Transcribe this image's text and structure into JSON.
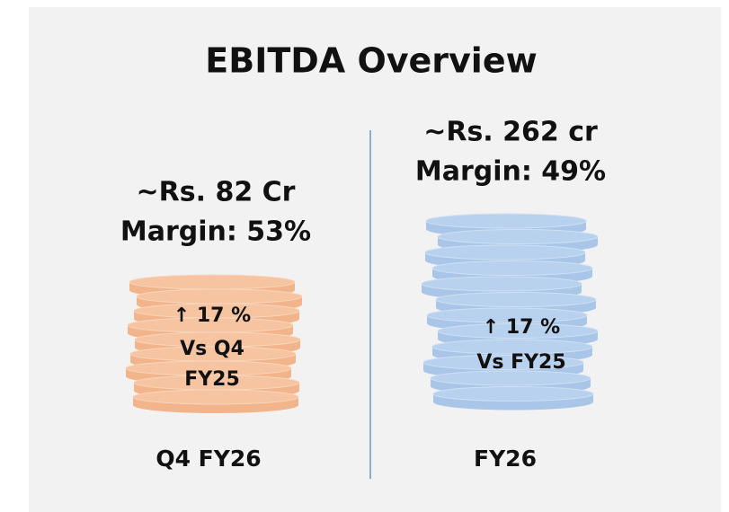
{
  "title": "EBITDA Overview",
  "panels": [
    {
      "amount": "~Rs. 82 Cr",
      "margin": "Margin: 53%",
      "growth": "↑ 17 %",
      "comparison": [
        "Vs Q4",
        "FY25"
      ],
      "period": "Q4 FY26"
    },
    {
      "amount": "~Rs. 262 cr",
      "margin": "Margin: 49%",
      "growth": "↑ 17 %",
      "comparison": [
        "Vs FY25"
      ],
      "period": "FY26"
    }
  ]
}
